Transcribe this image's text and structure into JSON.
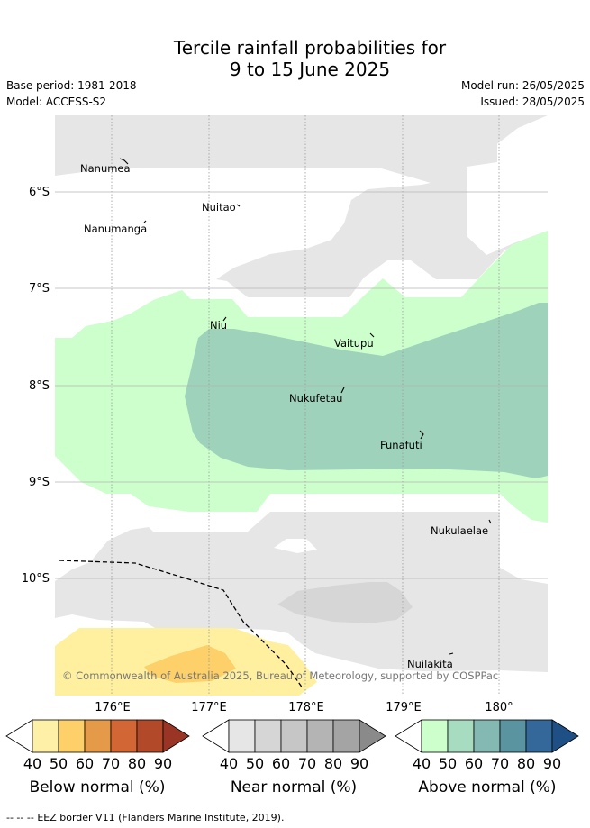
{
  "title_line1": "Tercile rainfall probabilities for",
  "title_line2": "9 to 15 June 2025",
  "base_period": "Base period: 1981-2018",
  "model": "Model: ACCESS-S2",
  "model_run": "Model run: 26/05/2025",
  "issued": "Issued: 28/05/2025",
  "latitudes": [
    "6°S",
    "7°S",
    "8°S",
    "9°S",
    "10°S"
  ],
  "longitudes": [
    "176°E",
    "177°E",
    "178°E",
    "179°E",
    "180°"
  ],
  "places": [
    "Nanumea",
    "Nuitao",
    "Nanumanga",
    "Niu",
    "Vaitupu",
    "Nukufetau",
    "Funafuti",
    "Nukulaelae",
    "Nuilakita"
  ],
  "copyright": "© Commonwealth of Australia 2025, Bureau of Meteorology, supported by COSPPac",
  "colorbars": [
    {
      "label": "Below normal (%)",
      "ticks": [
        "40",
        "50",
        "60",
        "70",
        "80",
        "90"
      ],
      "colors": [
        "#ffffff",
        "#fff0a8",
        "#fdd06a",
        "#e49a48",
        "#d26634",
        "#b24a2a",
        "#9a3424"
      ]
    },
    {
      "label": "Near normal (%)",
      "ticks": [
        "40",
        "50",
        "60",
        "70",
        "80",
        "90"
      ],
      "colors": [
        "#ffffff",
        "#e6e6e6",
        "#d6d6d6",
        "#c6c6c6",
        "#b4b4b4",
        "#a4a4a4",
        "#8a8a8a"
      ]
    },
    {
      "label": "Above normal (%)",
      "ticks": [
        "40",
        "50",
        "60",
        "70",
        "80",
        "90"
      ],
      "colors": [
        "#ffffff",
        "#ccffcc",
        "#a8dcc0",
        "#84b8b2",
        "#5a94a0",
        "#35689a",
        "#1e4f85"
      ]
    }
  ],
  "footer": "-- -- -- EEZ border V11 (Flanders Marine Institute, 2019).",
  "legend_dash": "--  --  --",
  "footer_text": "EEZ border V11 (Flanders Marine Institute, 2019)."
}
